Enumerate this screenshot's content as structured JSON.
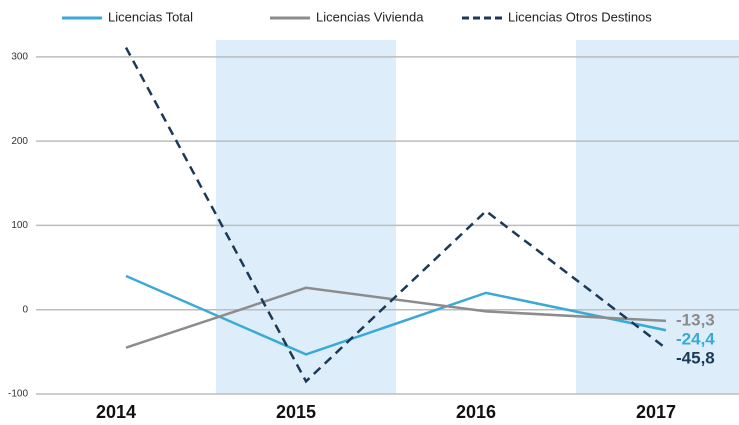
{
  "chart_data": {
    "type": "line",
    "categories": [
      "2014",
      "2015",
      "2016",
      "2017"
    ],
    "series": [
      {
        "name": "Licencias Total",
        "color": "#3aa9d6",
        "dash": false,
        "values": [
          40,
          -53,
          20,
          -24.4
        ],
        "value_labels": [
          null,
          null,
          null,
          "-24,4"
        ]
      },
      {
        "name": "Licencias Vivienda",
        "color": "#8c8c8c",
        "dash": false,
        "values": [
          -45,
          26,
          -2,
          -13.3
        ],
        "value_labels": [
          null,
          null,
          null,
          "-13,3"
        ]
      },
      {
        "name": "Licencias Otros Destinos",
        "color": "#1c3a57",
        "dash": true,
        "values": [
          311,
          -85,
          117,
          -45.8
        ],
        "value_labels": [
          null,
          null,
          null,
          "-45,8"
        ]
      }
    ],
    "ylim": [
      -100,
      320
    ],
    "yticks": [
      -100,
      0,
      100,
      200,
      300
    ],
    "grid": true
  }
}
